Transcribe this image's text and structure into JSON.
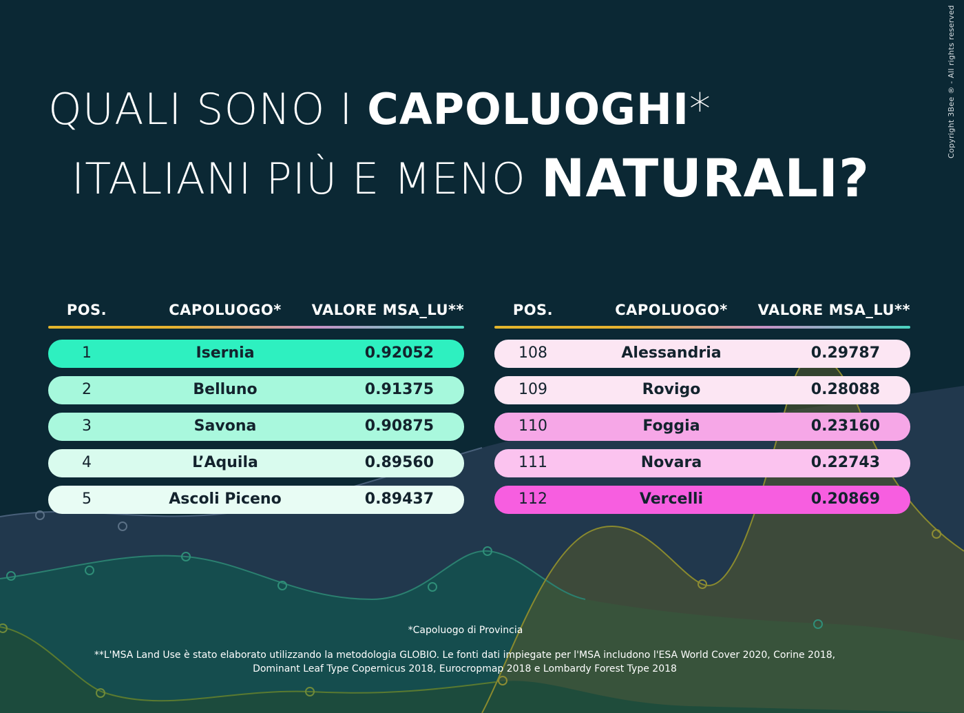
{
  "title": {
    "line1_light": "QUALI SONO I",
    "line1_bold": "CAPOLUOGHI",
    "line1_asterisk": "*",
    "line2_light": "ITALIANI PIÙ E MENO",
    "line2_bold": "NATURALI?"
  },
  "copyright": "Copyright 3Bee ® - All rights reserved",
  "headers": {
    "pos": "POS.",
    "city": "CAPOLUOGO*",
    "value": "VALORE MSA_LU**"
  },
  "colors": {
    "background": "#0b2834",
    "top_rows": [
      "#2ef0c0",
      "#a6f8dc",
      "#a9f8dd",
      "#d9fbee",
      "#e8fcf4"
    ],
    "bottom_rows": [
      "#fce6f3",
      "#fce6f3",
      "#f6a7e7",
      "#fbc3ef",
      "#f75ee0"
    ]
  },
  "most_natural": [
    {
      "pos": "1",
      "city": "Isernia",
      "value": "0.92052"
    },
    {
      "pos": "2",
      "city": "Belluno",
      "value": "0.91375"
    },
    {
      "pos": "3",
      "city": "Savona",
      "value": "0.90875"
    },
    {
      "pos": "4",
      "city": "L’Aquila",
      "value": "0.89560"
    },
    {
      "pos": "5",
      "city": "Ascoli Piceno",
      "value": "0.89437"
    }
  ],
  "least_natural": [
    {
      "pos": "108",
      "city": "Alessandria",
      "value": "0.29787"
    },
    {
      "pos": "109",
      "city": "Rovigo",
      "value": "0.28088"
    },
    {
      "pos": "110",
      "city": "Foggia",
      "value": "0.23160"
    },
    {
      "pos": "111",
      "city": "Novara",
      "value": "0.22743"
    },
    {
      "pos": "112",
      "city": "Vercelli",
      "value": "0.20869"
    }
  ],
  "footnotes": {
    "note1": "*Capoluogo di Provincia",
    "note2": "**L'MSA Land Use è stato elaborato utilizzando la metodologia GLOBIO. Le fonti dati impiegate per l'MSA includono l'ESA World Cover 2020, Corine 2018, Dominant Leaf Type Copernicus 2018, Eurocropmap 2018 e Lombardy Forest Type 2018"
  }
}
